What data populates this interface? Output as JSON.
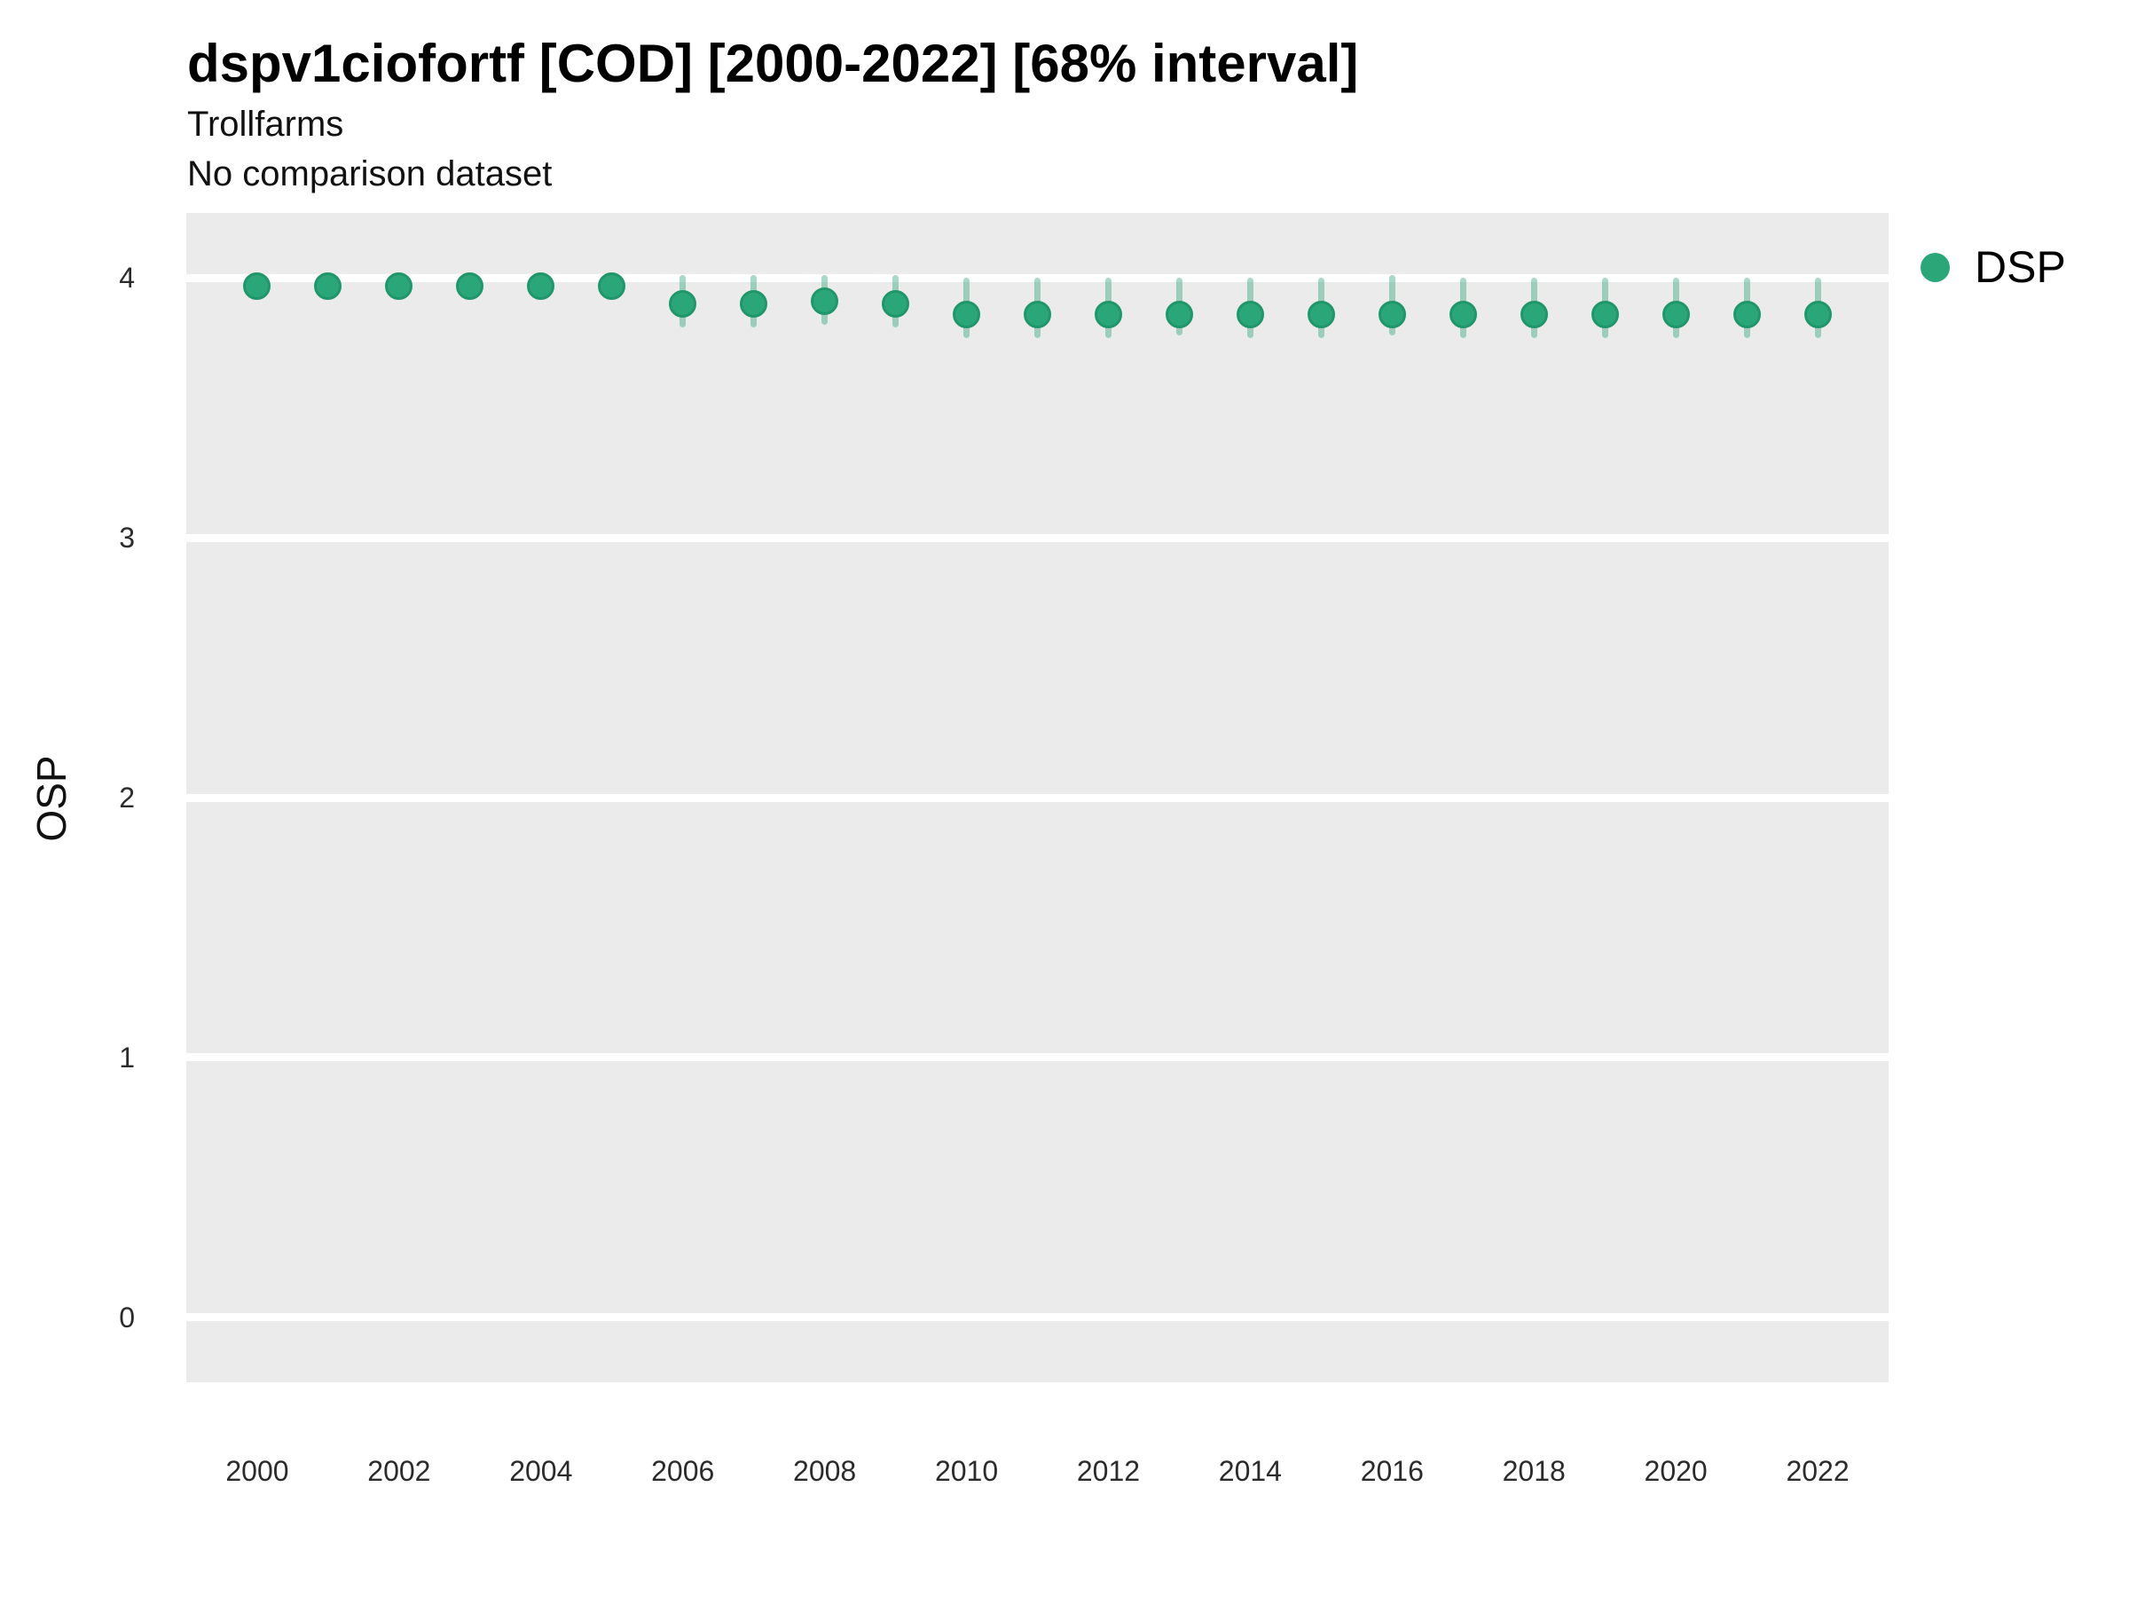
{
  "header": {
    "title": "dspv1ciofortf [COD] [2000-2022] [68% interval]",
    "subtitle": "Trollfarms",
    "note": "No comparison dataset"
  },
  "legend": {
    "position": "right",
    "items": [
      {
        "label": "DSP",
        "swatch": "circle",
        "color": "#2BA679"
      }
    ]
  },
  "colors": {
    "page_background": "#FFFFFF",
    "panel_background": "#EBEBEB",
    "gridline": "#FFFFFF",
    "point_fill": "#2BA679",
    "point_stroke": "#21966A",
    "interval_bar": "rgba(43,166,121,0.42)",
    "title_text": "#000000",
    "axis_text": "#2B2B2B"
  },
  "chart_data": {
    "type": "scatter",
    "subtype": "point-interval",
    "title": "dspv1ciofortf [COD] [2000-2022] [68% interval]",
    "subtitle": "Trollfarms",
    "note": "No comparison dataset",
    "interval_level": "68%",
    "xlabel": "",
    "ylabel": "OSP",
    "x_domain": [
      1999,
      2023
    ],
    "y_domain": [
      -0.25,
      4.25
    ],
    "x_ticks": [
      2000,
      2002,
      2004,
      2006,
      2008,
      2010,
      2012,
      2014,
      2016,
      2018,
      2020,
      2022
    ],
    "y_ticks": [
      0,
      1,
      2,
      3,
      4
    ],
    "grid": "horizontal-major-only",
    "legend_position": "right",
    "series": [
      {
        "name": "DSP",
        "points": [
          {
            "x": 2000,
            "y": 3.97,
            "lo": 3.93,
            "hi": 4.01
          },
          {
            "x": 2001,
            "y": 3.97,
            "lo": 3.93,
            "hi": 4.01
          },
          {
            "x": 2002,
            "y": 3.97,
            "lo": 3.93,
            "hi": 4.01
          },
          {
            "x": 2003,
            "y": 3.97,
            "lo": 3.93,
            "hi": 4.01
          },
          {
            "x": 2004,
            "y": 3.97,
            "lo": 3.93,
            "hi": 4.01
          },
          {
            "x": 2005,
            "y": 3.97,
            "lo": 3.93,
            "hi": 4.01
          },
          {
            "x": 2006,
            "y": 3.9,
            "lo": 3.81,
            "hi": 4.01
          },
          {
            "x": 2007,
            "y": 3.9,
            "lo": 3.81,
            "hi": 4.01
          },
          {
            "x": 2008,
            "y": 3.91,
            "lo": 3.82,
            "hi": 4.01
          },
          {
            "x": 2009,
            "y": 3.9,
            "lo": 3.81,
            "hi": 4.01
          },
          {
            "x": 2010,
            "y": 3.86,
            "lo": 3.77,
            "hi": 4.0
          },
          {
            "x": 2011,
            "y": 3.86,
            "lo": 3.77,
            "hi": 4.0
          },
          {
            "x": 2012,
            "y": 3.86,
            "lo": 3.77,
            "hi": 4.0
          },
          {
            "x": 2013,
            "y": 3.86,
            "lo": 3.78,
            "hi": 4.0
          },
          {
            "x": 2014,
            "y": 3.86,
            "lo": 3.77,
            "hi": 4.0
          },
          {
            "x": 2015,
            "y": 3.86,
            "lo": 3.77,
            "hi": 4.0
          },
          {
            "x": 2016,
            "y": 3.86,
            "lo": 3.78,
            "hi": 4.01
          },
          {
            "x": 2017,
            "y": 3.86,
            "lo": 3.77,
            "hi": 4.0
          },
          {
            "x": 2018,
            "y": 3.86,
            "lo": 3.77,
            "hi": 4.0
          },
          {
            "x": 2019,
            "y": 3.86,
            "lo": 3.77,
            "hi": 4.0
          },
          {
            "x": 2020,
            "y": 3.86,
            "lo": 3.77,
            "hi": 4.0
          },
          {
            "x": 2021,
            "y": 3.86,
            "lo": 3.77,
            "hi": 4.0
          },
          {
            "x": 2022,
            "y": 3.86,
            "lo": 3.77,
            "hi": 4.0
          }
        ]
      }
    ]
  }
}
